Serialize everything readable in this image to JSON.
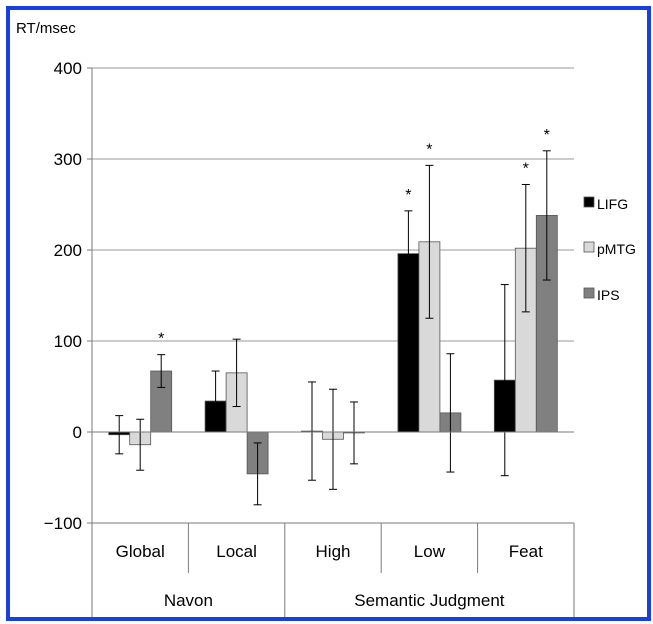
{
  "chart_data": {
    "type": "bar",
    "ylabel": "RT/msec",
    "ylim": [
      -100,
      400
    ],
    "yticks": [
      -100,
      0,
      100,
      200,
      300,
      400
    ],
    "ytick_labels": [
      "−100",
      "0",
      "100",
      "200",
      "300",
      "400"
    ],
    "grid": true,
    "legend_position": "right",
    "categories": [
      "Global",
      "Local",
      "High",
      "Low",
      "Feat"
    ],
    "groups": [
      {
        "label": "Navon",
        "categories": [
          "Global",
          "Local"
        ]
      },
      {
        "label": "Semantic Judgment",
        "categories": [
          "High",
          "Low",
          "Feat"
        ]
      }
    ],
    "series": [
      {
        "name": "LIFG",
        "color": "#000000",
        "values": [
          -3,
          34,
          1,
          196,
          57
        ],
        "errors": [
          21,
          33,
          54,
          47,
          105
        ],
        "significant": [
          false,
          false,
          false,
          true,
          false
        ]
      },
      {
        "name": "pMTG",
        "color": "#d9d9d9",
        "values": [
          -14,
          65,
          -8,
          209,
          202
        ],
        "errors": [
          28,
          37,
          55,
          84,
          70
        ],
        "significant": [
          false,
          false,
          false,
          true,
          true
        ]
      },
      {
        "name": "IPS",
        "color": "#808080",
        "values": [
          67,
          -46,
          -1,
          21,
          238
        ],
        "errors": [
          18,
          34,
          34,
          65,
          71
        ],
        "significant": [
          true,
          false,
          false,
          false,
          true
        ]
      }
    ],
    "significance_marker": "*"
  }
}
